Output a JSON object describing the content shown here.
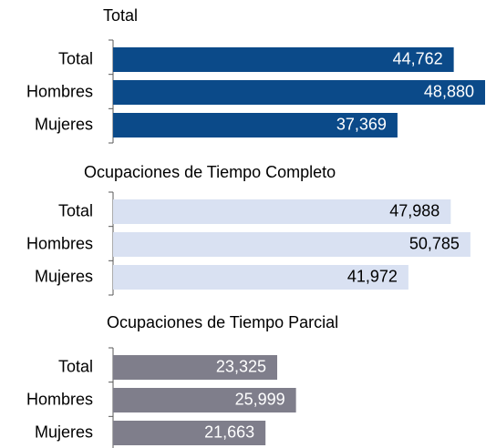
{
  "chart_data": [
    {
      "type": "bar",
      "orientation": "horizontal",
      "title": "Total",
      "categories": [
        "Total",
        "Hombres",
        "Mujeres"
      ],
      "values": [
        44762,
        48880,
        37369
      ],
      "value_labels": [
        "44,762",
        "48,880",
        "37,369"
      ],
      "color": "#0b4a89",
      "label_color": "#ffffff",
      "xlim": [
        0,
        49000
      ]
    },
    {
      "type": "bar",
      "orientation": "horizontal",
      "title": "Ocupaciones de Tiempo Completo",
      "categories": [
        "Total",
        "Hombres",
        "Mujeres"
      ],
      "values": [
        47988,
        50785,
        41972
      ],
      "value_labels": [
        "47,988",
        "50,785",
        "41,972"
      ],
      "color": "#d9e1f2",
      "label_color": "#000000",
      "xlim": [
        0,
        53000
      ]
    },
    {
      "type": "bar",
      "orientation": "horizontal",
      "title": "Ocupaciones de Tiempo Parcial",
      "categories": [
        "Total",
        "Hombres",
        "Mujeres"
      ],
      "values": [
        23325,
        25999,
        21663
      ],
      "value_labels": [
        "23,325",
        "25,999",
        "21,663"
      ],
      "color": "#7f7e8b",
      "label_color": "#ffffff",
      "xlim": [
        0,
        53000
      ]
    }
  ]
}
